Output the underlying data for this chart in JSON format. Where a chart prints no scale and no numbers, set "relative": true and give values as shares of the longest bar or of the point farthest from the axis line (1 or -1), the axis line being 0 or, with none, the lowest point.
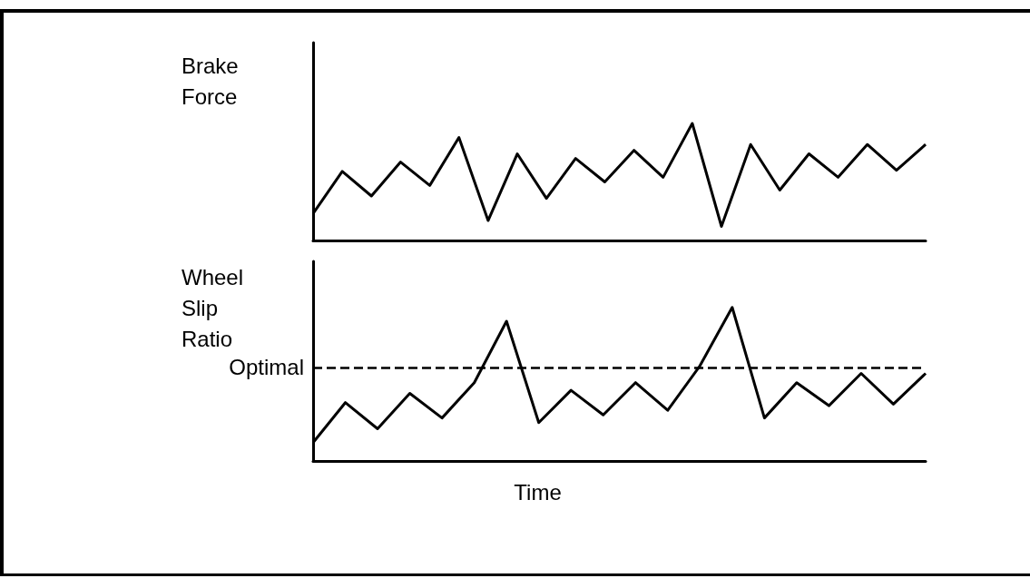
{
  "chart_data": [
    {
      "type": "line",
      "ylabel": "Brake Force",
      "relative": true,
      "marker": "none",
      "line_style": "solid",
      "color": "#000000",
      "categories": [
        null,
        null,
        null,
        null,
        null,
        null,
        null,
        null,
        null,
        null,
        null,
        null,
        null,
        null,
        null,
        null,
        null,
        null,
        null,
        null,
        null,
        null
      ],
      "values": [
        0.23,
        0.59,
        0.38,
        0.67,
        0.47,
        0.88,
        0.17,
        0.74,
        0.36,
        0.7,
        0.5,
        0.77,
        0.54,
        1.0,
        0.12,
        0.82,
        0.43,
        0.74,
        0.54,
        0.82,
        0.6,
        0.82
      ]
    },
    {
      "type": "line",
      "ylabel": "Wheel Slip Ratio",
      "xlabel": "Time",
      "relative": true,
      "marker": "none",
      "line_style": "solid",
      "color": "#000000",
      "categories": [
        null,
        null,
        null,
        null,
        null,
        null,
        null,
        null,
        null,
        null,
        null,
        null,
        null,
        null,
        null,
        null,
        null,
        null,
        null,
        null
      ],
      "values": [
        0.12,
        0.38,
        0.21,
        0.44,
        0.28,
        0.51,
        0.91,
        0.25,
        0.46,
        0.3,
        0.51,
        0.33,
        0.62,
        1.0,
        0.28,
        0.51,
        0.36,
        0.57,
        0.37,
        0.57
      ],
      "ref_lines": [
        {
          "axis": "y",
          "value": 0.61,
          "label": "Optimal",
          "line_style": "dashed"
        }
      ]
    }
  ]
}
